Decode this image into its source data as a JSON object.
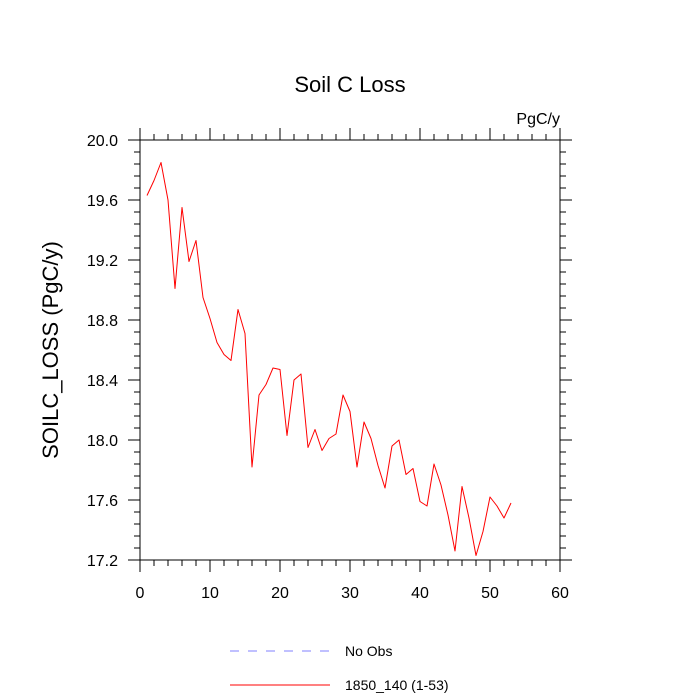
{
  "chart_data": {
    "type": "line",
    "title": "Soil C Loss",
    "units_label": "PgC/y",
    "xlabel": "",
    "ylabel": "SOILC_LOSS  (PgC/y)",
    "xlim": [
      0,
      60
    ],
    "ylim": [
      17.2,
      20.0
    ],
    "x_ticks": [
      0,
      10,
      20,
      30,
      40,
      50,
      60
    ],
    "y_ticks": [
      17.2,
      17.6,
      18.0,
      18.4,
      18.8,
      19.2,
      19.6,
      20.0
    ],
    "x_tick_labels": [
      "0",
      "10",
      "20",
      "30",
      "40",
      "50",
      "60"
    ],
    "y_tick_labels": [
      "17.2",
      "17.6",
      "18.0",
      "18.4",
      "18.8",
      "19.2",
      "19.6",
      "20.0"
    ],
    "grid": false,
    "legend_position": "bottom",
    "series": [
      {
        "name": "1850_140 (1-53)",
        "color": "#ff0000",
        "style": "solid",
        "x": [
          1,
          2,
          3,
          4,
          5,
          6,
          7,
          8,
          9,
          10,
          11,
          12,
          13,
          14,
          15,
          16,
          17,
          18,
          19,
          20,
          21,
          22,
          23,
          24,
          25,
          26,
          27,
          28,
          29,
          30,
          31,
          32,
          33,
          34,
          35,
          36,
          37,
          38,
          39,
          40,
          41,
          42,
          43,
          44,
          45,
          46,
          47,
          48,
          49,
          50,
          51,
          52,
          53
        ],
        "values": [
          19.63,
          19.73,
          19.85,
          19.6,
          19.01,
          19.55,
          19.19,
          19.33,
          18.95,
          18.81,
          18.65,
          18.57,
          18.53,
          18.87,
          18.71,
          17.82,
          18.3,
          18.37,
          18.48,
          18.47,
          18.03,
          18.4,
          18.44,
          17.95,
          18.07,
          17.93,
          18.01,
          18.04,
          18.3,
          18.19,
          17.82,
          18.12,
          18.01,
          17.83,
          17.68,
          17.96,
          18.0,
          17.77,
          17.81,
          17.59,
          17.56,
          17.84,
          17.7,
          17.5,
          17.26,
          17.69,
          17.48,
          17.23,
          17.39,
          17.62,
          17.56,
          17.48,
          17.58
        ]
      },
      {
        "name": "No Obs",
        "color": "#8080ff",
        "style": "dashed",
        "x": [],
        "values": []
      }
    ]
  }
}
